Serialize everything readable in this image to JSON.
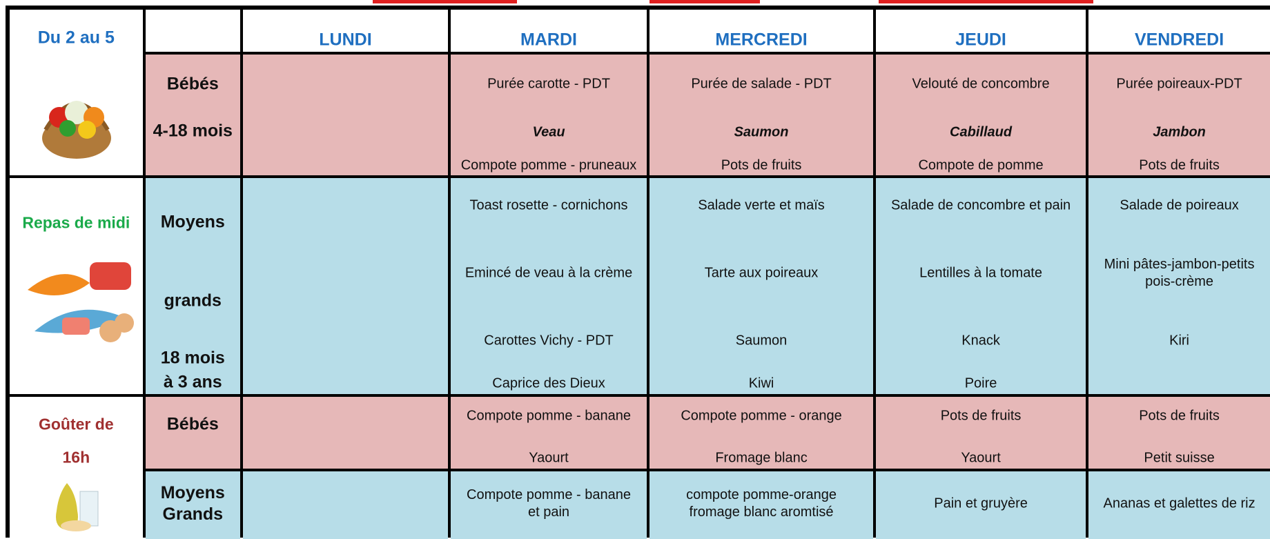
{
  "header": {
    "period": "Du 2 au 5",
    "days": [
      "LUNDI",
      "MARDI",
      "MERCREDI",
      "JEUDI",
      "VENDREDI"
    ]
  },
  "lunch": {
    "title": "Repas de midi",
    "babies": {
      "label": [
        "Bébés",
        "4-18 mois"
      ],
      "menus": [
        [],
        [
          "Purée carotte - PDT",
          "Veau",
          "Compote pomme - pruneaux"
        ],
        [
          "Purée de salade - PDT",
          "Saumon",
          "Pots de fruits"
        ],
        [
          "Velouté de concombre",
          "Cabillaud",
          "Compote de pomme"
        ],
        [
          "Purée poireaux-PDT",
          "Jambon",
          "Pots de fruits"
        ]
      ]
    },
    "older": {
      "label": [
        "Moyens",
        "grands",
        "18 mois",
        "à 3 ans"
      ],
      "menus": [
        [],
        [
          "Toast rosette - cornichons",
          "Emincé de veau à la crème",
          "Carottes Vichy - PDT",
          "Caprice des Dieux"
        ],
        [
          "Salade verte et maïs",
          "Tarte aux poireaux",
          "Saumon",
          "Kiwi"
        ],
        [
          "Salade de concombre et pain",
          "Lentilles à la tomate",
          "Knack",
          "Poire"
        ],
        [
          "Salade de poireaux",
          "Mini pâtes-jambon-petits pois-crème",
          "Kiri"
        ]
      ]
    }
  },
  "snack": {
    "title": [
      "Goûter de",
      "16h"
    ],
    "babies": {
      "label": [
        "Bébés"
      ],
      "menus": [
        [],
        [
          "Compote pomme - banane",
          "Yaourt"
        ],
        [
          "Compote pomme - orange",
          "Fromage blanc"
        ],
        [
          "Pots de fruits",
          "Yaourt"
        ],
        [
          "Pots de fruits",
          "Petit suisse"
        ]
      ]
    },
    "older": {
      "label": [
        "Moyens",
        "Grands"
      ],
      "menus": [
        [],
        [
          "Compote pomme - banane",
          "et pain"
        ],
        [
          "compote pomme-orange",
          "fromage blanc aromtisé"
        ],
        [
          "Pain et gruyère"
        ],
        [
          "Ananas et galettes de riz"
        ]
      ]
    }
  }
}
